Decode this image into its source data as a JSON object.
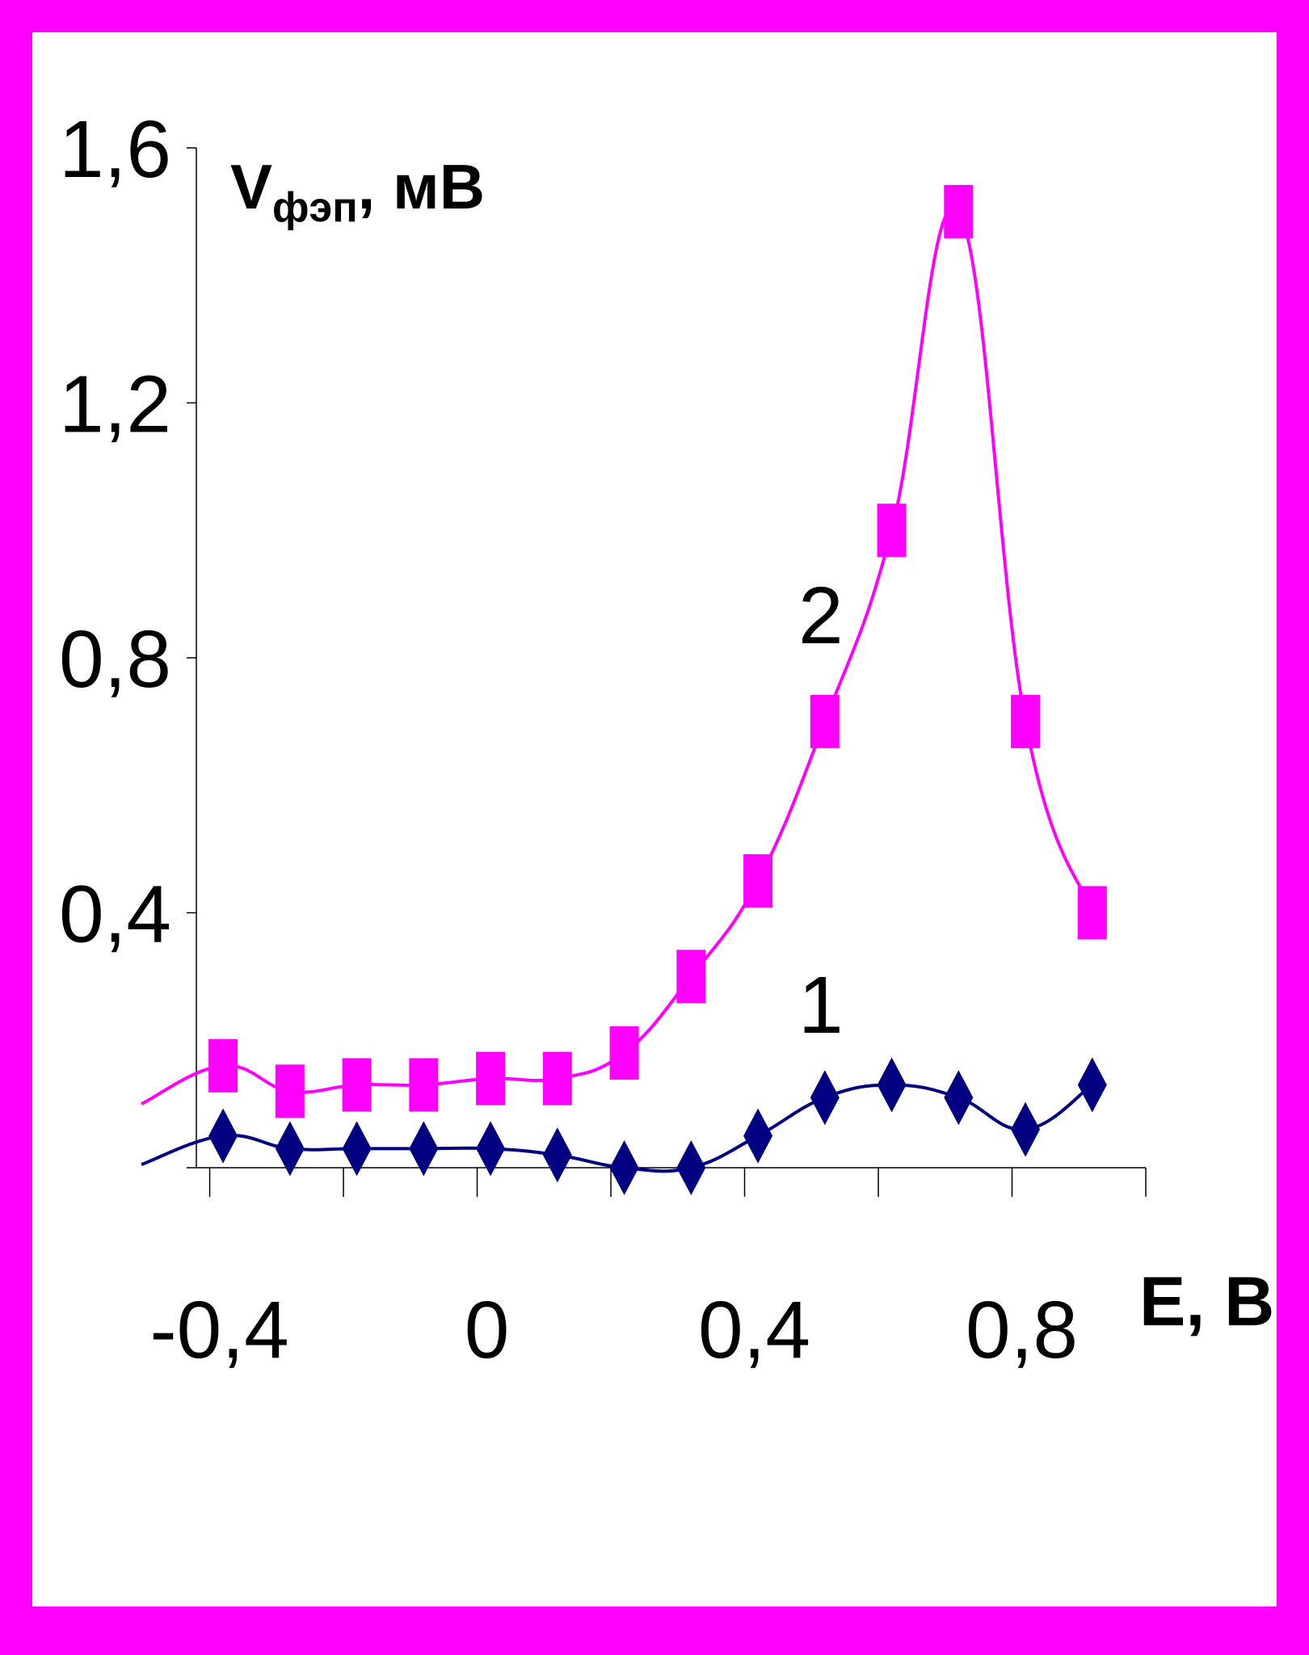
{
  "chart_data": {
    "type": "line",
    "title": "",
    "xlabel": "E, В",
    "ylabel": {
      "main": "V",
      "sub": "фэп",
      "unit": ", мВ"
    },
    "xlim": [
      -0.42,
      1.0
    ],
    "ylim": [
      0,
      1.6
    ],
    "x_ticks": [
      -0.4,
      0,
      0.4,
      0.8
    ],
    "x_tick_labels": [
      "-0,4",
      "0",
      "0,4",
      "0,8"
    ],
    "y_ticks": [
      0.4,
      0.8,
      1.2,
      1.6
    ],
    "y_tick_labels": [
      "0,4",
      "0,8",
      "1,2",
      "1,6"
    ],
    "grid": false,
    "legend": "none",
    "series": [
      {
        "name": "1",
        "color": "#000080",
        "marker": "diamond",
        "x": [
          -0.38,
          -0.28,
          -0.18,
          -0.08,
          0.02,
          0.12,
          0.22,
          0.32,
          0.42,
          0.52,
          0.62,
          0.72,
          0.82,
          0.92
        ],
        "y": [
          0.05,
          0.03,
          0.03,
          0.03,
          0.03,
          0.02,
          0.0,
          0.0,
          0.05,
          0.11,
          0.13,
          0.11,
          0.06,
          0.13
        ]
      },
      {
        "name": "2",
        "color": "#ff00ff",
        "marker": "square",
        "x": [
          -0.38,
          -0.28,
          -0.18,
          -0.08,
          0.02,
          0.12,
          0.22,
          0.32,
          0.42,
          0.52,
          0.62,
          0.72,
          0.82,
          0.92
        ],
        "y": [
          0.16,
          0.12,
          0.13,
          0.13,
          0.14,
          0.14,
          0.18,
          0.3,
          0.45,
          0.7,
          1.0,
          1.5,
          0.7,
          0.4
        ]
      }
    ],
    "annotations": [
      "2",
      "1"
    ]
  }
}
